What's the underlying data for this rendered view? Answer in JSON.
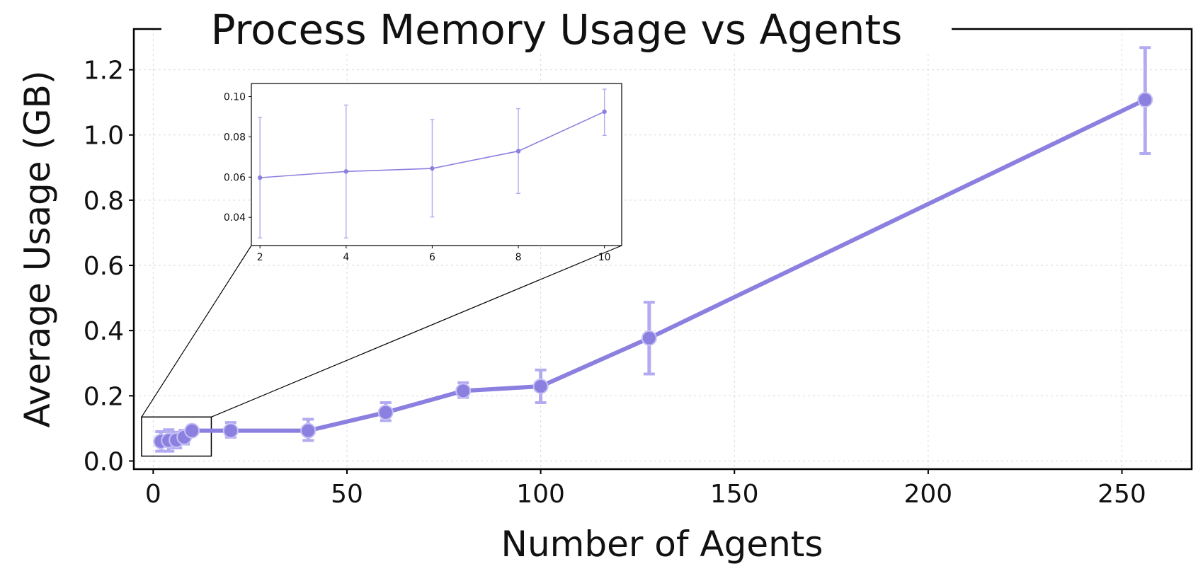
{
  "chart_data": {
    "type": "line",
    "title": "Process Memory Usage vs Agents",
    "xlabel": "Number of Agents",
    "ylabel": "Average Usage (GB)",
    "xlim": [
      -5,
      268
    ],
    "ylim": [
      -0.025,
      1.325
    ],
    "xticks": [
      0,
      50,
      100,
      150,
      200,
      250
    ],
    "yticks": [
      0.0,
      0.2,
      0.4,
      0.6,
      0.8,
      1.0,
      1.2
    ],
    "grid": true,
    "color": "#8b80e0",
    "errorbar_color": "#b3abf0",
    "series": [
      {
        "x": [
          2,
          4,
          6,
          8,
          10,
          20,
          40,
          60,
          80,
          100,
          128,
          256
        ],
        "y": [
          0.06,
          0.063,
          0.064,
          0.073,
          0.093,
          0.093,
          0.093,
          0.149,
          0.215,
          0.229,
          0.377,
          1.108
        ],
        "err_low": [
          0.03,
          0.033,
          0.024,
          0.021,
          0.012,
          0.02,
          0.03,
          0.025,
          0.02,
          0.05,
          0.11,
          0.165
        ],
        "err_high": [
          0.03,
          0.033,
          0.024,
          0.021,
          0.011,
          0.025,
          0.035,
          0.03,
          0.025,
          0.05,
          0.11,
          0.16
        ]
      }
    ],
    "inset": {
      "x": [
        2,
        4,
        6,
        8,
        10
      ],
      "y": [
        0.0597,
        0.0628,
        0.0643,
        0.0729,
        0.0925
      ],
      "err_low": [
        0.0299,
        0.033,
        0.0241,
        0.021,
        0.0118
      ],
      "err_high": [
        0.03,
        0.033,
        0.0243,
        0.0211,
        0.0112
      ],
      "xlim": [
        1.8,
        10.4
      ],
      "ylim": [
        0.026,
        0.1065
      ],
      "xticks": [
        2,
        4,
        6,
        8,
        10
      ],
      "yticks": [
        0.04,
        0.06,
        0.08,
        0.1
      ],
      "ytick_labels": [
        "0.04",
        "0.06",
        "0.08",
        "0.10"
      ],
      "zoom_region": {
        "xlim": [
          -3,
          15
        ],
        "ylim": [
          0.015,
          0.135
        ]
      }
    }
  }
}
